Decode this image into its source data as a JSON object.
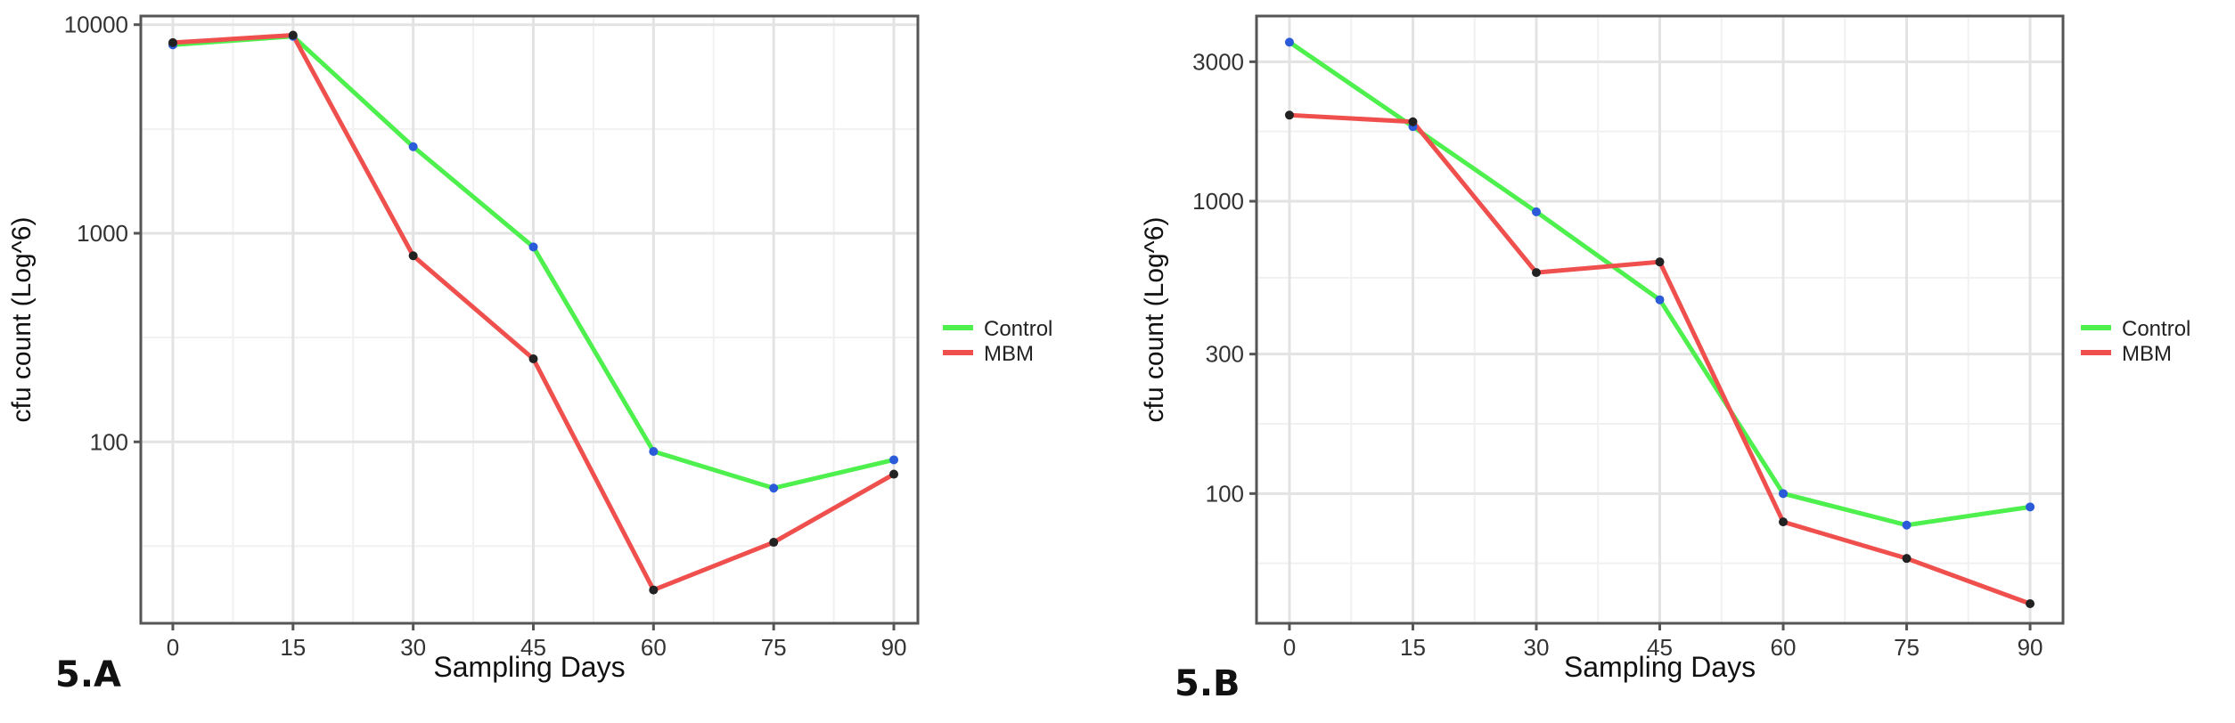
{
  "panels": [
    {
      "label": "5.A"
    },
    {
      "label": "5.B"
    }
  ],
  "chart_data": [
    {
      "type": "line",
      "title": "",
      "xlabel": "Sampling Days",
      "ylabel": "cfu count (Log^6)",
      "yscale": "log",
      "x": [
        0,
        15,
        30,
        45,
        60,
        75,
        90
      ],
      "xticks": [
        "0",
        "15",
        "30",
        "45",
        "60",
        "75",
        "90"
      ],
      "yticks": [
        100,
        1000,
        10000
      ],
      "ytick_labels": [
        "100",
        "1000",
        "10000"
      ],
      "xlim": [
        -4,
        93
      ],
      "ylim": [
        13.5,
        11000
      ],
      "grid": true,
      "legend": "right",
      "series": [
        {
          "name": "Control",
          "color": "#4df04d",
          "values": [
            8000,
            8800,
            2600,
            860,
            90,
            60,
            82
          ]
        },
        {
          "name": "MBM",
          "color": "#f0504d",
          "values": [
            8200,
            8900,
            780,
            250,
            19.5,
            33,
            70
          ]
        }
      ]
    },
    {
      "type": "line",
      "title": "",
      "xlabel": "Sampling Days",
      "ylabel": "cfu count (Log^6)",
      "yscale": "log",
      "x": [
        0,
        15,
        30,
        45,
        60,
        75,
        90
      ],
      "xticks": [
        "0",
        "15",
        "30",
        "45",
        "60",
        "75",
        "90"
      ],
      "yticks": [
        100,
        300,
        1000,
        3000
      ],
      "ytick_labels": [
        "100",
        "300",
        "1000",
        "3000"
      ],
      "xlim": [
        -4,
        94
      ],
      "ylim": [
        36,
        4300
      ],
      "grid": true,
      "legend": "right",
      "series": [
        {
          "name": "Control",
          "color": "#4df04d",
          "values": [
            3500,
            1800,
            920,
            460,
            100,
            78,
            90
          ]
        },
        {
          "name": "MBM",
          "color": "#f0504d",
          "values": [
            1970,
            1870,
            570,
            620,
            80,
            60,
            42
          ]
        }
      ]
    }
  ]
}
